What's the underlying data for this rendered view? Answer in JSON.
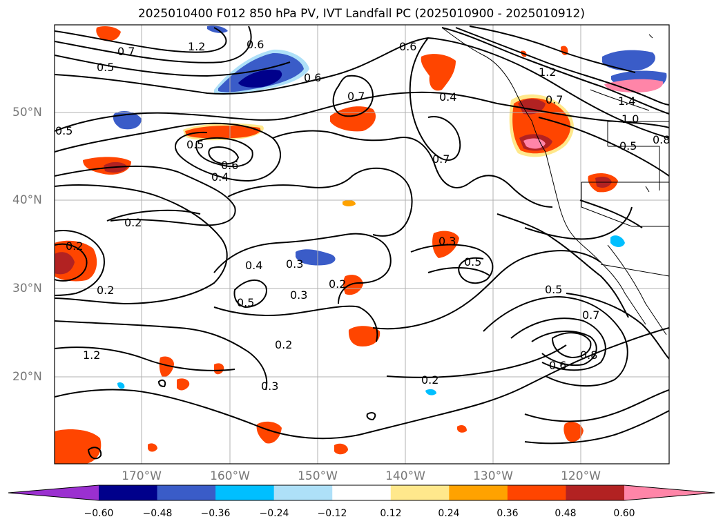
{
  "title": "2025010400 F012 850 hPa PV, IVT Landfall PC (2025010900 - 2025010912)",
  "latitude_labels": [
    "50°N",
    "40°N",
    "30°N",
    "20°N"
  ],
  "longitude_labels": [
    "170°W",
    "160°W",
    "150°W",
    "140°W",
    "130°W",
    "120°W"
  ],
  "colorbar": {
    "tick_labels": [
      "−0.60",
      "−0.48",
      "−0.36",
      "−0.24",
      "−0.12",
      "0.12",
      "0.24",
      "0.36",
      "0.48",
      "0.60"
    ],
    "colors": [
      "#9b30d0",
      "#00008b",
      "#3a5cc8",
      "#00bfff",
      "#aee0f8",
      "#ffffff",
      "#ffe88c",
      "#ffa200",
      "#ff4500",
      "#b22222",
      "#ff85a8"
    ]
  },
  "contour_labels": [
    "0.7",
    "0.5",
    "1.2",
    "0.6",
    "0.6",
    "0.7",
    "0.4",
    "0.5",
    "1.2",
    "0.7",
    "1.4",
    "1.0",
    "0.5",
    "0.8",
    "0.5",
    "0.6",
    "0.4",
    "0.7",
    "0.2",
    "0.2",
    "0.3",
    "0.4",
    "0.3",
    "0.5",
    "0.2",
    "0.3",
    "0.5",
    "0.5",
    "0.2",
    "0.2",
    "0.7",
    "0.8",
    "0.6",
    "0.3",
    "0.2",
    "1.2",
    "0.6"
  ],
  "colors": {
    "contour": "#000000",
    "grid": "#b0b0b0",
    "coast": "#000000"
  }
}
